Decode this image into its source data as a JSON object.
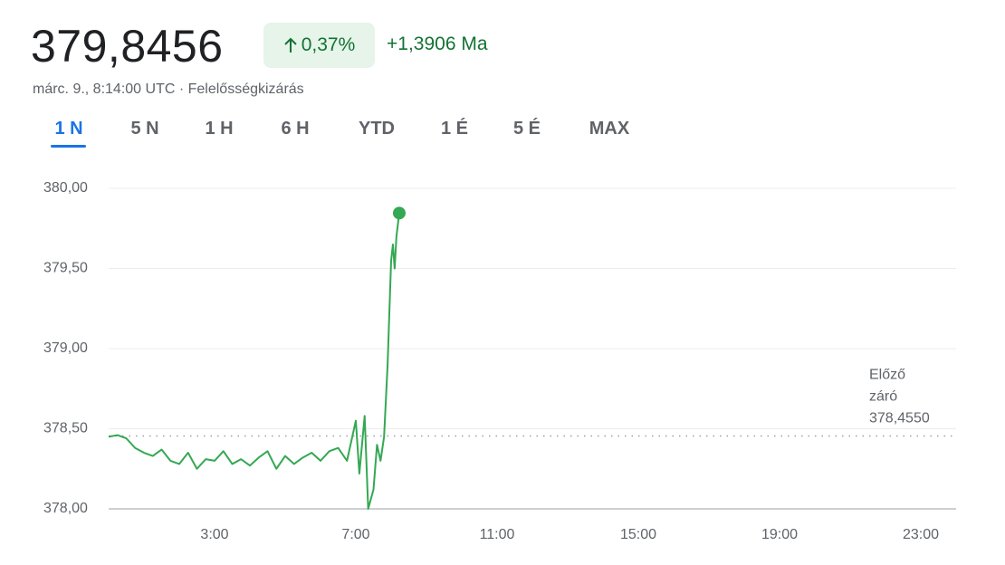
{
  "header": {
    "price": "379,8456",
    "percent_change": "0,37%",
    "absolute_change": "+1,3906 Ma",
    "timestamp": "márc. 9., 8:14:00 UTC · Felelősségkizárás"
  },
  "tabs": [
    "1 N",
    "5 N",
    "1 H",
    "6 H",
    "YTD",
    "1 É",
    "5 É",
    "MAX"
  ],
  "active_tab": 0,
  "chart_data": {
    "type": "line",
    "color": "#34a853",
    "x": [
      0.0,
      0.25,
      0.5,
      0.75,
      1.0,
      1.25,
      1.5,
      1.75,
      2.0,
      2.25,
      2.5,
      2.75,
      3.0,
      3.25,
      3.5,
      3.75,
      4.0,
      4.25,
      4.5,
      4.75,
      5.0,
      5.25,
      5.5,
      5.75,
      6.0,
      6.25,
      6.5,
      6.75,
      7.0,
      7.1,
      7.25,
      7.35,
      7.5,
      7.6,
      7.7,
      7.8,
      7.9,
      8.0,
      8.05,
      8.1,
      8.15,
      8.23
    ],
    "values": [
      378.45,
      378.46,
      378.44,
      378.38,
      378.35,
      378.33,
      378.37,
      378.3,
      378.28,
      378.35,
      378.25,
      378.31,
      378.3,
      378.36,
      378.28,
      378.31,
      378.27,
      378.32,
      378.36,
      378.25,
      378.33,
      378.28,
      378.32,
      378.35,
      378.3,
      378.36,
      378.38,
      378.3,
      378.55,
      378.22,
      378.58,
      378.0,
      378.12,
      378.4,
      378.3,
      378.45,
      378.9,
      379.55,
      379.65,
      379.5,
      379.7,
      379.8456
    ],
    "xlim": [
      0,
      24
    ],
    "xticks": [
      {
        "value": 3,
        "label": "3:00"
      },
      {
        "value": 7,
        "label": "7:00"
      },
      {
        "value": 11,
        "label": "11:00"
      },
      {
        "value": 15,
        "label": "15:00"
      },
      {
        "value": 19,
        "label": "19:00"
      },
      {
        "value": 23,
        "label": "23:00"
      }
    ],
    "ylim": [
      378,
      380
    ],
    "yticks": [
      {
        "value": 378,
        "label": "378,00"
      },
      {
        "value": 378.5,
        "label": "378,50"
      },
      {
        "value": 379,
        "label": "379,00"
      },
      {
        "value": 379.5,
        "label": "379,50"
      },
      {
        "value": 380,
        "label": "380,00"
      }
    ],
    "grid": true,
    "previous_close": {
      "value": 378.455,
      "label": "378,4550",
      "caption": [
        "Előző",
        "záró"
      ]
    }
  }
}
